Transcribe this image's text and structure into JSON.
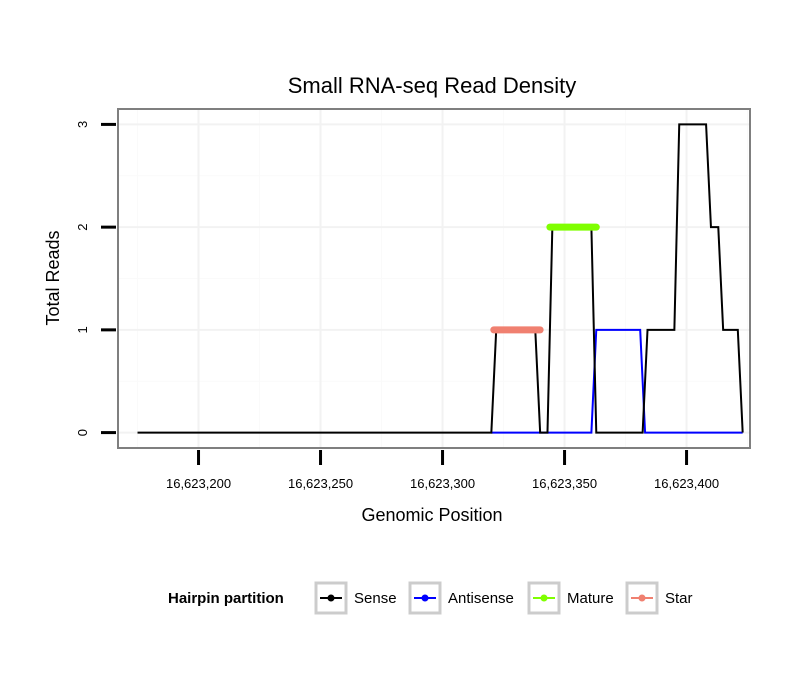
{
  "chart_data": {
    "type": "line",
    "title": "Small RNA-seq Read Density",
    "xlabel": "Genomic Position",
    "ylabel": "Total Reads",
    "xlim": [
      16623167,
      16623426
    ],
    "ylim": [
      -0.15,
      3.15
    ],
    "xticks": [
      16623200,
      16623250,
      16623300,
      16623350,
      16623400
    ],
    "xtick_labels": [
      "16,623,200",
      "16,623,250",
      "16,623,300",
      "16,623,350",
      "16,623,400"
    ],
    "yticks": [
      0,
      1,
      2,
      3
    ],
    "ytick_labels": [
      "0",
      "1",
      "2",
      "3"
    ],
    "grid": true,
    "legend": {
      "title": "Hairpin partition",
      "position": "bottom",
      "entries": [
        "Sense",
        "Antisense",
        "Mature",
        "Star"
      ]
    },
    "series": [
      {
        "name": "Sense",
        "color": "#000000",
        "x": [
          16623175,
          16623320,
          16623322,
          16623338,
          16623340,
          16623343,
          16623345,
          16623361,
          16623363,
          16623382,
          16623384,
          16623395,
          16623397,
          16623408,
          16623410,
          16623413,
          16623415,
          16623421,
          16623423
        ],
        "y": [
          0,
          0,
          1,
          1,
          0,
          0,
          2,
          2,
          0,
          0,
          1,
          1,
          3,
          3,
          2,
          2,
          1,
          1,
          0
        ]
      },
      {
        "name": "Antisense",
        "color": "#0000ff",
        "x": [
          16623320,
          16623361,
          16623363,
          16623381,
          16623383,
          16623423
        ],
        "y": [
          0,
          0,
          1,
          1,
          0,
          0
        ]
      },
      {
        "name": "Mature",
        "color": "#7fff00",
        "x": [
          16623344,
          16623363
        ],
        "y": [
          2,
          2
        ]
      },
      {
        "name": "Star",
        "color": "#f08070",
        "x": [
          16623321,
          16623340
        ],
        "y": [
          1,
          1
        ]
      }
    ]
  }
}
